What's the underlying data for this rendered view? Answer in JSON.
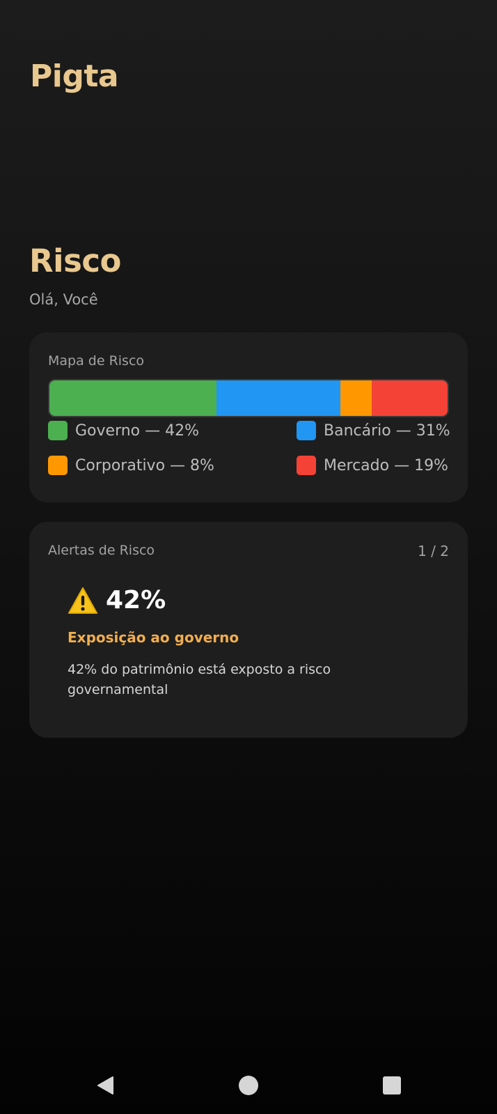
{
  "app": {
    "title": "Pigta"
  },
  "page": {
    "title": "Risco",
    "greeting": "Olá, Você"
  },
  "risk_map": {
    "label": "Mapa de Risco",
    "segments": [
      {
        "name": "Governo",
        "percent": 42,
        "color": "#4caf50",
        "legend": "Governo — 42%"
      },
      {
        "name": "Bancário",
        "percent": 31,
        "color": "#2196f3",
        "legend": "Bancário — 31%"
      },
      {
        "name": "Corporativo",
        "percent": 8,
        "color": "#ff9800",
        "legend": "Corporativo — 8%"
      },
      {
        "name": "Mercado",
        "percent": 19,
        "color": "#f44336",
        "legend": "Mercado — 19%"
      }
    ]
  },
  "alerts": {
    "label": "Alertas de Risco",
    "counter": "1 / 2",
    "current": {
      "icon": "warning-icon",
      "value": "42%",
      "title": "Exposição ao governo",
      "description": "42% do patrimônio está exposto a risco governamental"
    }
  },
  "navigation": {
    "back_icon": "back-triangle-icon",
    "home_icon": "home-circle-icon",
    "recents_icon": "recents-square-icon"
  },
  "colors": {
    "accent_gold": "#e9c88f",
    "alert_orange": "#f0ae50",
    "card_bg": "#1e1e1e"
  }
}
